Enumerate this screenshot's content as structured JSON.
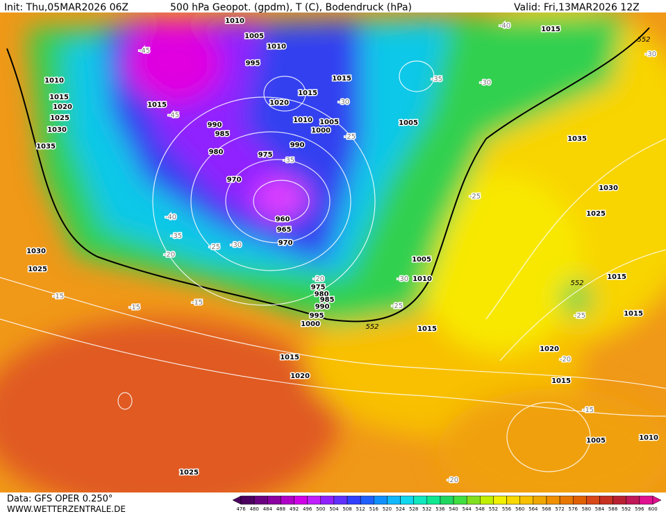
{
  "header": {
    "init": "Init: Thu,05MAR2026 06Z",
    "title": "500 hPa Geopot. (gpdm), T (C), Bodendruck (hPa)",
    "valid": "Valid: Fri,13MAR2026 12Z"
  },
  "map": {
    "isobar_labels": [
      "1010",
      "1005",
      "1010",
      "995",
      "1010",
      "1015",
      "1020",
      "1025",
      "1030",
      "1035",
      "1015",
      "990",
      "985",
      "980",
      "975",
      "970",
      "990",
      "1000",
      "1005",
      "1010",
      "1020",
      "1015",
      "1015",
      "1005",
      "960",
      "965",
      "970",
      "1005",
      "1010",
      "975",
      "980",
      "985",
      "990",
      "995",
      "1000",
      "1015",
      "1015",
      "1020",
      "1025",
      "1030",
      "1025",
      "1015",
      "1035",
      "1030",
      "1025",
      "1015",
      "1015",
      "1020",
      "1015",
      "1005",
      "1010"
    ],
    "temperature_labels": [
      "-45",
      "-45",
      "-40",
      "-30",
      "-35",
      "-30",
      "-30",
      "-25",
      "-35",
      "-40",
      "-35",
      "-25",
      "-30",
      "-20",
      "-25",
      "-20",
      "-30",
      "-25",
      "-15",
      "-15",
      "-15",
      "-25",
      "-20",
      "-15",
      "-20"
    ],
    "geopotential_labels": [
      "552",
      "552",
      "552"
    ]
  },
  "legend": {
    "values": [
      476,
      480,
      484,
      488,
      492,
      496,
      500,
      504,
      508,
      512,
      516,
      520,
      524,
      528,
      532,
      536,
      540,
      544,
      548,
      552,
      556,
      560,
      564,
      568,
      572,
      576,
      580,
      584,
      588,
      592,
      596,
      600
    ],
    "colors": [
      "#4b0060",
      "#6a0080",
      "#8a00a0",
      "#b000c8",
      "#d000e8",
      "#c020ff",
      "#9020ff",
      "#6030ff",
      "#3040ff",
      "#2060ff",
      "#1090ff",
      "#10b8ff",
      "#10d8f0",
      "#10e8c0",
      "#10e890",
      "#20d860",
      "#40e040",
      "#80e020",
      "#c0f000",
      "#f0f000",
      "#f8d800",
      "#f8c000",
      "#f0a800",
      "#f09000",
      "#e87800",
      "#e06000",
      "#d84818",
      "#c83020",
      "#b82030",
      "#c01858",
      "#e01090"
    ]
  },
  "footer": {
    "data": "Data: GFS OPER 0.250°",
    "site": "WWW.WETTERZENTRALE.DE"
  }
}
